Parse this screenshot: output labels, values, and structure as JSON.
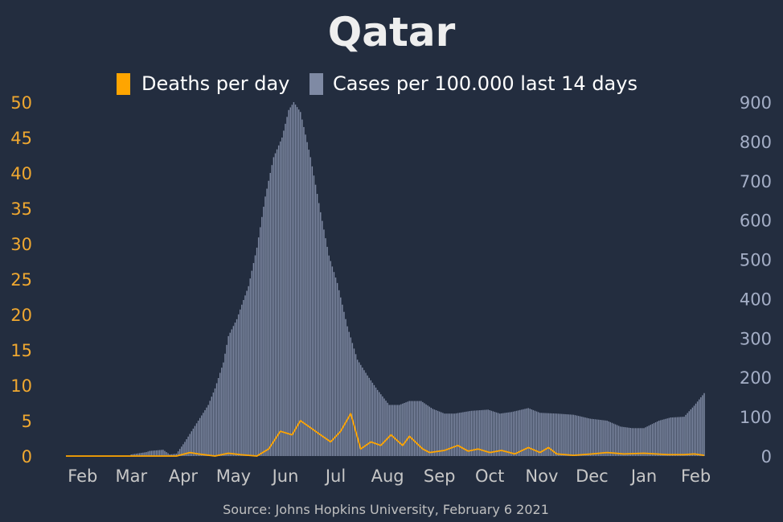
{
  "chart_data": {
    "type": "bar+line",
    "title": "Qatar",
    "source": "Source: Johns Hopkins University, February 6 2021",
    "legend_position": "top-center",
    "series": [
      {
        "name": "Deaths per day",
        "type": "line",
        "axis": "left",
        "color": "#ffa500"
      },
      {
        "name": "Cases per 100.000 last 14 days",
        "type": "bar",
        "axis": "right",
        "color": "#7f8aa4"
      }
    ],
    "left_axis": {
      "ylim": [
        0,
        50
      ],
      "ticks": [
        "0",
        "5",
        "10",
        "15",
        "20",
        "25",
        "30",
        "35",
        "40",
        "45",
        "50"
      ],
      "color": "#f0a830"
    },
    "right_axis": {
      "ylim": [
        0,
        900
      ],
      "ticks": [
        "0",
        "100",
        "200",
        "300",
        "400",
        "500",
        "600",
        "700",
        "800",
        "900"
      ],
      "color": "#a4aec6"
    },
    "x_axis": {
      "labels": [
        "Feb",
        "Mar",
        "Apr",
        "May",
        "Jun",
        "Jul",
        "Aug",
        "Sep",
        "Oct",
        "Nov",
        "Dec",
        "Jan",
        "Feb"
      ],
      "range": [
        "2020-01-22",
        "2021-02-06"
      ]
    },
    "cases_per_100k_14d": {
      "dates": [
        "2020-01-22",
        "2020-02-29",
        "2020-03-01",
        "2020-03-10",
        "2020-03-12",
        "2020-03-20",
        "2020-03-24",
        "2020-03-28",
        "2020-04-02",
        "2020-04-10",
        "2020-04-16",
        "2020-04-20",
        "2020-04-25",
        "2020-04-28",
        "2020-05-03",
        "2020-05-06",
        "2020-05-10",
        "2020-05-15",
        "2020-05-20",
        "2020-05-25",
        "2020-05-30",
        "2020-06-03",
        "2020-06-06",
        "2020-06-10",
        "2020-06-16",
        "2020-06-22",
        "2020-06-27",
        "2020-07-02",
        "2020-07-08",
        "2020-07-14",
        "2020-07-20",
        "2020-07-26",
        "2020-08-02",
        "2020-08-08",
        "2020-08-14",
        "2020-08-21",
        "2020-08-28",
        "2020-09-04",
        "2020-09-10",
        "2020-09-20",
        "2020-09-30",
        "2020-10-07",
        "2020-10-14",
        "2020-10-24",
        "2020-10-31",
        "2020-11-10",
        "2020-11-20",
        "2020-11-30",
        "2020-12-10",
        "2020-12-18",
        "2020-12-25",
        "2021-01-01",
        "2021-01-10",
        "2021-01-17",
        "2021-01-25",
        "2021-01-31",
        "2021-02-06"
      ],
      "values": [
        0,
        0,
        4,
        10,
        13,
        16,
        4,
        6,
        36,
        90,
        130,
        172,
        238,
        305,
        348,
        385,
        432,
        530,
        660,
        760,
        810,
        880,
        900,
        875,
        760,
        620,
        510,
        440,
        330,
        245,
        205,
        168,
        130,
        130,
        140,
        140,
        120,
        108,
        108,
        115,
        118,
        108,
        112,
        122,
        110,
        108,
        105,
        95,
        90,
        75,
        71,
        71,
        90,
        98,
        100,
        128,
        160
      ]
    },
    "deaths_per_day": {
      "dates": [
        "2020-01-22",
        "2020-03-28",
        "2020-04-05",
        "2020-04-10",
        "2020-04-20",
        "2020-04-28",
        "2020-05-05",
        "2020-05-15",
        "2020-05-22",
        "2020-05-29",
        "2020-06-05",
        "2020-06-10",
        "2020-06-16",
        "2020-06-22",
        "2020-06-28",
        "2020-07-04",
        "2020-07-10",
        "2020-07-16",
        "2020-07-22",
        "2020-07-28",
        "2020-08-03",
        "2020-08-10",
        "2020-08-14",
        "2020-08-22",
        "2020-08-26",
        "2020-09-04",
        "2020-09-12",
        "2020-09-18",
        "2020-09-24",
        "2020-10-01",
        "2020-10-08",
        "2020-10-16",
        "2020-10-24",
        "2020-10-31",
        "2020-11-05",
        "2020-11-10",
        "2020-11-20",
        "2020-12-01",
        "2020-12-10",
        "2020-12-20",
        "2021-01-01",
        "2021-01-15",
        "2021-01-25",
        "2021-01-31",
        "2021-02-06"
      ],
      "values": [
        0,
        0,
        0.5,
        0.3,
        0,
        0.4,
        0.2,
        0,
        1,
        3.5,
        3,
        5,
        4,
        3,
        2,
        3.5,
        6,
        1,
        2,
        1.5,
        3,
        1.5,
        2.8,
        1,
        0.5,
        0.8,
        1.5,
        0.7,
        1,
        0.5,
        0.8,
        0.3,
        1.2,
        0.5,
        1.2,
        0.3,
        0.1,
        0.3,
        0.5,
        0.3,
        0.4,
        0.2,
        0.2,
        0.3,
        0.1
      ]
    }
  }
}
